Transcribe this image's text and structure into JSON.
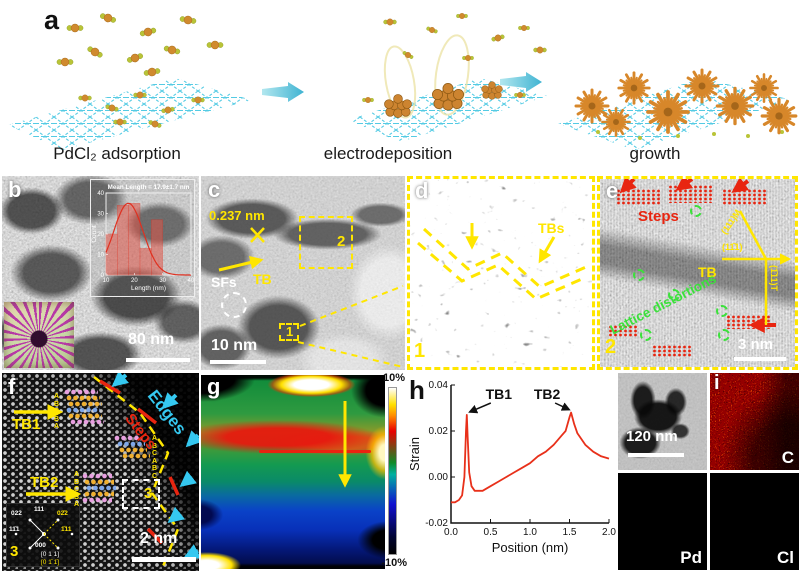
{
  "colors": {
    "annotation_yellow": "#ffe600",
    "annotation_red": "#e82510",
    "annotation_cyan": "#35c8f0",
    "annotation_green": "#3ce03c",
    "strain_curve": "#e8301a",
    "hist_bar": "#e05548",
    "arrow_teal": "#6fcfe0",
    "lattice_cyan": "#54cbe4",
    "pd_orange": "#d08a2e",
    "cl_green": "#b9c437",
    "urchin_orange": "#d7872a"
  },
  "panel_a": {
    "label": "a",
    "captions": [
      "PdCl₂ adsorption",
      "electrodeposition",
      "growth"
    ]
  },
  "panel_b": {
    "label": "b",
    "scale_bar": "80 nm"
  },
  "panel_c": {
    "label": "c",
    "d_spacing": "0.237 nm",
    "tb_label": "TB",
    "sfs_label": "SFs",
    "box1_label": "1",
    "box2_label": "2",
    "scale_bar": "10 nm"
  },
  "panel_d": {
    "label": "d",
    "tbs_label": "TBs",
    "tag": "1"
  },
  "panel_e": {
    "label": "e",
    "steps_label": "Steps",
    "tb_label": "TB",
    "plane_m": "(111)M",
    "plane_c": "(11̄1)",
    "plane_t": "(1̄11)T",
    "lattice_label": "Lattice distortions",
    "tag": "2",
    "scale_bar": "3 nm"
  },
  "panel_f": {
    "label": "f",
    "tb1_label": "TB1",
    "tb2_label": "TB2",
    "edges_label": "Edges",
    "steps_label": "Steps",
    "stack1": "A\nB\nC\nB\nA",
    "stack2": "A\nB\nC\nA\nB\nC",
    "stack3": "A\nB\nC\nB\nA",
    "box3_label": "3",
    "tag": "3",
    "scale_bar": "2 nm",
    "fft": {
      "l022": "022",
      "l111": "111",
      "y022": "02̄2",
      "l111b": "11̄1",
      "y111": "1̄11",
      "l000": "000",
      "zone_matrix": "[0 1 1]",
      "zone_twin": "[0 1̄ 1̄]"
    }
  },
  "panel_g": {
    "label": "g",
    "cb_max": "10%",
    "cb_min": "-10%"
  },
  "panel_h": {
    "label": "h"
  },
  "panel_i": {
    "label": "i",
    "scale_bar": "120 nm",
    "map_c": "C",
    "map_pd": "Pd",
    "map_cl": "Cl"
  },
  "chart_data": [
    {
      "type": "bar",
      "title": "Mean Length = 17.9±1.7 nm",
      "xlabel": "Length (nm)",
      "ylabel": "Count",
      "xlim": [
        10,
        40
      ],
      "ylim": [
        0,
        40
      ],
      "xticks": [
        10,
        20,
        30,
        40
      ],
      "yticks": [
        0,
        10,
        20,
        30,
        40
      ],
      "bin_width": 4,
      "categories": [
        12,
        16,
        20,
        24,
        28
      ],
      "values": [
        20,
        34,
        35,
        13,
        27
      ],
      "fit_curve": {
        "type": "gaussian",
        "mean": 17.9,
        "sigma": 5.2,
        "amplitude": 35
      },
      "bar_color": "#e05548",
      "curve_color": "#e03020"
    },
    {
      "type": "line",
      "xlabel": "Position (nm)",
      "ylabel": "Strain",
      "xlim": [
        0,
        2
      ],
      "ylim": [
        -0.02,
        0.04
      ],
      "xticks": [
        "0.0",
        "0.5",
        "1.0",
        "1.5",
        "2.0"
      ],
      "yticks": [
        "-0.02",
        "0.00",
        "0.02",
        "0.04"
      ],
      "line_color": "#e8301a",
      "x": [
        0,
        0.05,
        0.1,
        0.14,
        0.17,
        0.19,
        0.2,
        0.21,
        0.23,
        0.26,
        0.3,
        0.4,
        0.5,
        0.6,
        0.7,
        0.8,
        0.9,
        1.0,
        1.1,
        1.2,
        1.3,
        1.4,
        1.45,
        1.5,
        1.52,
        1.56,
        1.6,
        1.7,
        1.8,
        1.9,
        2.0
      ],
      "y": [
        -0.011,
        -0.011,
        -0.01,
        -0.008,
        0,
        0.02,
        0.027,
        0.018,
        0.002,
        -0.004,
        -0.006,
        -0.006,
        -0.004,
        -0.002,
        0,
        0.002,
        0.004,
        0.006,
        0.009,
        0.011,
        0.014,
        0.018,
        0.02,
        0.026,
        0.028,
        0.023,
        0.019,
        0.014,
        0.011,
        0.009,
        0.008
      ],
      "annotations": [
        {
          "text": "TB1",
          "x": 0.2,
          "y": 0.027
        },
        {
          "text": "TB2",
          "x": 1.52,
          "y": 0.028
        }
      ]
    }
  ]
}
